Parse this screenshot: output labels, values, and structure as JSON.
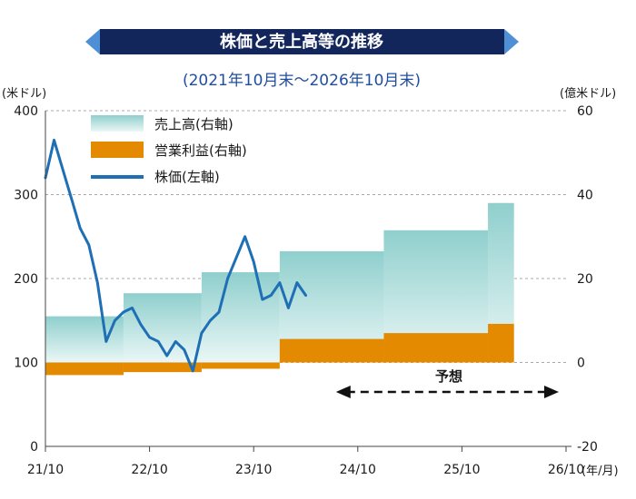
{
  "chart_data": {
    "type": "line",
    "title": "株価と売上高等の推移",
    "subtitle": "(2021年10月末〜2026年10月末)",
    "y_left_unit": "(米ドル)",
    "y_right_unit": "(億米ドル)",
    "x_unit": "(年/月)",
    "x_ticks": [
      "21/10",
      "22/10",
      "23/10",
      "24/10",
      "25/10",
      "26/10"
    ],
    "y_left_ticks": [
      0,
      100,
      200,
      300,
      400
    ],
    "y_right_ticks": [
      -20,
      0,
      20,
      40,
      60
    ],
    "y_left_range": [
      0,
      400
    ],
    "y_right_range": [
      -20,
      60
    ],
    "grid": "horizontal dashed",
    "forecast_label": "予想",
    "forecast_range": [
      "24/10",
      "26/10"
    ],
    "legend": {
      "position": "top-left",
      "items": [
        {
          "key": "revenue",
          "label": "売上高(右軸)",
          "color": "#9fd6d5"
        },
        {
          "key": "operating_profit",
          "label": "営業利益(右軸)",
          "color": "#e38a00"
        },
        {
          "key": "stock_price",
          "label": "株価(左軸)",
          "color": "#1f6fb5"
        }
      ]
    },
    "series": [
      {
        "name": "売上高(右軸)",
        "axis": "right",
        "kind": "step-area",
        "color": "#9fd6d5",
        "periods": [
          {
            "from": "21/10",
            "to": "22/07",
            "value": 11
          },
          {
            "from": "22/07",
            "to": "23/04",
            "value": 16.5
          },
          {
            "from": "23/04",
            "to": "24/01",
            "value": 21.5
          },
          {
            "from": "24/01",
            "to": "25/01",
            "value": 26.5
          },
          {
            "from": "25/01",
            "to": "26/01",
            "value": 31.5
          },
          {
            "from": "26/01",
            "to": "26/04",
            "value": 38
          }
        ]
      },
      {
        "name": "営業利益(右軸)",
        "axis": "right",
        "kind": "step-bar",
        "color": "#e38a00",
        "periods": [
          {
            "from": "21/10",
            "to": "22/07",
            "value": -3
          },
          {
            "from": "22/07",
            "to": "23/04",
            "value": -2.3
          },
          {
            "from": "23/04",
            "to": "24/01",
            "value": -1.5
          },
          {
            "from": "24/01",
            "to": "25/01",
            "value": 5.6
          },
          {
            "from": "25/01",
            "to": "26/01",
            "value": 7
          },
          {
            "from": "26/01",
            "to": "26/04",
            "value": 9.2
          }
        ]
      },
      {
        "name": "株価(左軸)",
        "axis": "left",
        "kind": "line",
        "color": "#1f6fb5",
        "points": [
          [
            "21/10",
            320
          ],
          [
            "21/11",
            365
          ],
          [
            "21/12",
            330
          ],
          [
            "22/01",
            295
          ],
          [
            "22/02",
            260
          ],
          [
            "22/03",
            240
          ],
          [
            "22/04",
            195
          ],
          [
            "22/05",
            125
          ],
          [
            "22/06",
            150
          ],
          [
            "22/07",
            160
          ],
          [
            "22/08",
            165
          ],
          [
            "22/09",
            145
          ],
          [
            "22/10",
            130
          ],
          [
            "22/11",
            125
          ],
          [
            "22/12",
            108
          ],
          [
            "23/01",
            125
          ],
          [
            "23/02",
            115
          ],
          [
            "23/03",
            90
          ],
          [
            "23/04",
            135
          ],
          [
            "23/05",
            150
          ],
          [
            "23/06",
            160
          ],
          [
            "23/07",
            200
          ],
          [
            "23/08",
            225
          ],
          [
            "23/09",
            250
          ],
          [
            "23/10",
            220
          ],
          [
            "23/11",
            175
          ],
          [
            "23/12",
            180
          ],
          [
            "24/01",
            195
          ],
          [
            "24/02",
            165
          ],
          [
            "24/03",
            195
          ],
          [
            "24/04",
            180
          ]
        ]
      }
    ]
  }
}
